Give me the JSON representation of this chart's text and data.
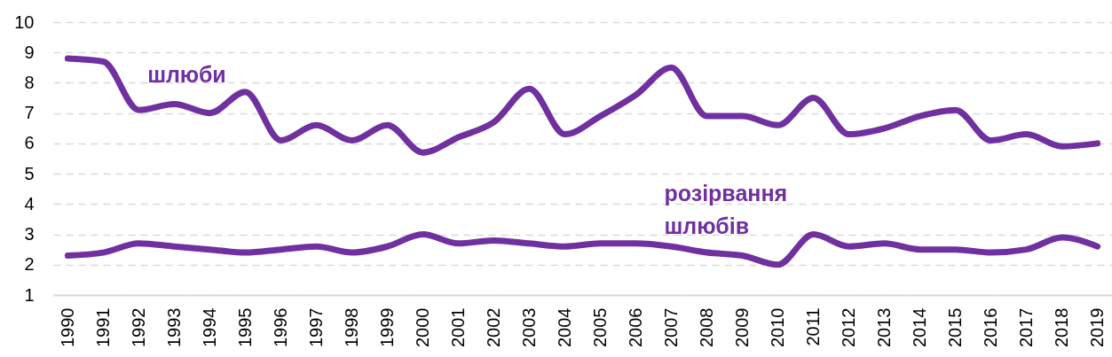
{
  "chart_data": {
    "type": "line",
    "categories": [
      "1990",
      "1991",
      "1992",
      "1993",
      "1994",
      "1995",
      "1996",
      "1997",
      "1998",
      "1999",
      "2000",
      "2001",
      "2002",
      "2003",
      "2004",
      "2005",
      "2006",
      "2007",
      "2008",
      "2009",
      "2010",
      "2011",
      "2012",
      "2013",
      "2014",
      "2015",
      "2016",
      "2017",
      "2018",
      "2019"
    ],
    "series": [
      {
        "name": "шлюби",
        "color": "#7030a0",
        "values": [
          8.8,
          8.7,
          7.1,
          7.3,
          7.0,
          7.7,
          6.1,
          6.6,
          6.1,
          6.6,
          5.7,
          6.2,
          6.7,
          7.8,
          6.3,
          6.9,
          7.6,
          8.5,
          6.9,
          6.9,
          6.6,
          7.5,
          6.3,
          6.5,
          6.9,
          7.1,
          6.1,
          6.3,
          5.9,
          6.0
        ]
      },
      {
        "name": "розірвання шлюбів",
        "color": "#7030a0",
        "values": [
          2.3,
          2.4,
          2.7,
          2.6,
          2.5,
          2.4,
          2.5,
          2.6,
          2.4,
          2.6,
          3.0,
          2.7,
          2.8,
          2.7,
          2.6,
          2.7,
          2.7,
          2.6,
          2.4,
          2.3,
          2.0,
          3.0,
          2.6,
          2.7,
          2.5,
          2.5,
          2.4,
          2.5,
          2.9,
          2.6
        ]
      }
    ],
    "ylim": [
      1,
      10
    ],
    "yticks": [
      1,
      2,
      3,
      4,
      5,
      6,
      7,
      8,
      9,
      10
    ],
    "grid": "y",
    "legend": false,
    "marker": "none",
    "line_style": "solid"
  }
}
